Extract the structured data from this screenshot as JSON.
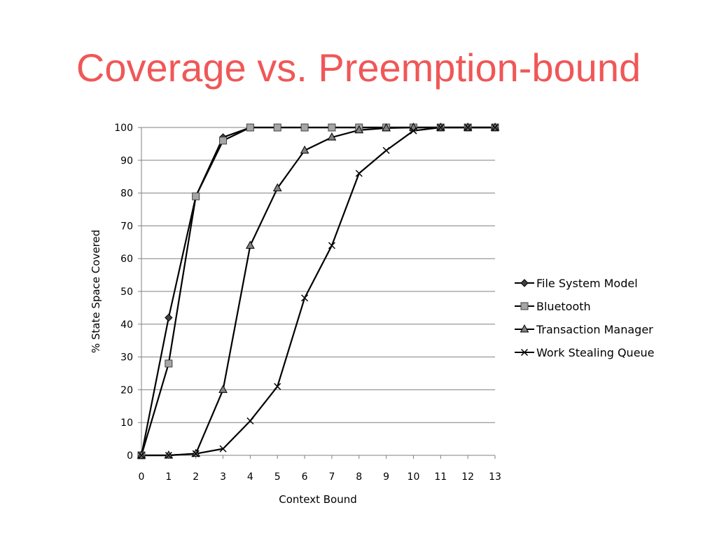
{
  "slide": {
    "title": "Coverage vs. Preemption-bound"
  },
  "chart_data": {
    "type": "line",
    "xlabel": "Context Bound",
    "ylabel": "% State Space Covered",
    "x": [
      0,
      1,
      2,
      3,
      4,
      5,
      6,
      7,
      8,
      9,
      10,
      11,
      12,
      13
    ],
    "xlim": [
      0,
      13
    ],
    "ylim": [
      0,
      100
    ],
    "yticks": [
      0,
      10,
      20,
      30,
      40,
      50,
      60,
      70,
      80,
      90,
      100
    ],
    "grid": "horizontal",
    "legend_position": "right",
    "series": [
      {
        "name": "File System Model",
        "marker": "diamond",
        "x": [
          0,
          1,
          2,
          3,
          4,
          5,
          6,
          7,
          8,
          9,
          10,
          11,
          12,
          13
        ],
        "values": [
          0,
          42,
          79,
          97,
          100,
          100,
          100,
          100,
          100,
          100,
          100,
          100,
          100,
          100
        ]
      },
      {
        "name": "Bluetooth",
        "marker": "square",
        "x": [
          0,
          1,
          2,
          3,
          4,
          5,
          6,
          7,
          8,
          9,
          10,
          11,
          12,
          13
        ],
        "values": [
          0,
          28,
          79,
          96,
          100,
          100,
          100,
          100,
          100,
          100,
          100,
          100,
          100,
          100
        ]
      },
      {
        "name": "Transaction Manager",
        "marker": "triangle",
        "x": [
          0,
          1,
          2,
          3,
          4,
          5,
          6,
          7,
          8,
          9,
          10,
          11,
          12,
          13
        ],
        "values": [
          0,
          0,
          0.5,
          20,
          64,
          81.5,
          93,
          97,
          99.2,
          99.8,
          100,
          100,
          100,
          100
        ]
      },
      {
        "name": "Work Stealing Queue",
        "marker": "x",
        "x": [
          0,
          1,
          2,
          3,
          4,
          5,
          6,
          7,
          8,
          9,
          10,
          11,
          12,
          13
        ],
        "values": [
          0,
          0,
          0.5,
          2,
          10.5,
          21,
          48,
          64,
          86,
          93,
          99,
          100,
          100,
          100
        ]
      }
    ]
  }
}
